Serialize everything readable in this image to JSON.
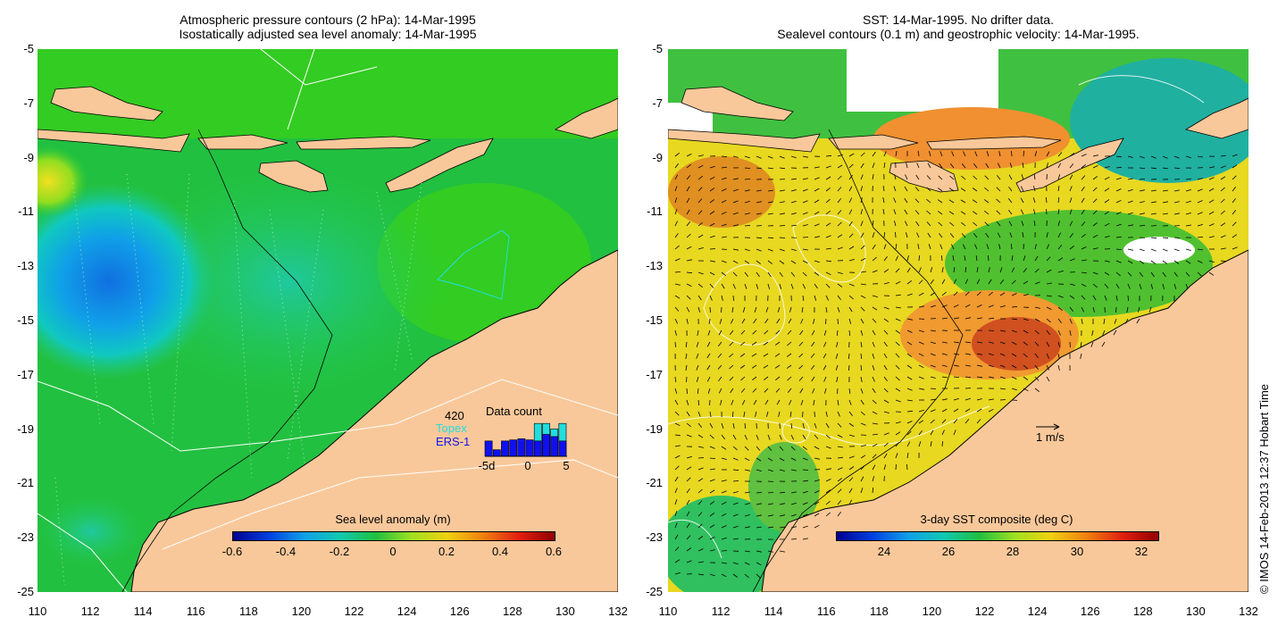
{
  "left_panel": {
    "title_line1": "Atmospheric pressure contours (2 hPa): 14-Mar-1995",
    "title_line2": "Isostatically adjusted sea level anomaly: 14-Mar-1995",
    "colorbar": {
      "label": "Sea level anomaly (m)",
      "ticks": [
        "-0.6",
        "-0.4",
        "-0.2",
        "0",
        "0.2",
        "0.4",
        "0.6"
      ],
      "range": [
        -0.6,
        0.6
      ]
    },
    "inset": {
      "title": "Data count",
      "count": "420",
      "topex_label": "Topex",
      "ers_label": "ERS-1",
      "x_ticks": [
        "-5d",
        "0",
        "5"
      ],
      "x_range": [
        -5,
        5
      ],
      "topex_bars": [
        {
          "day": -5,
          "count": 0
        },
        {
          "day": -4,
          "count": 0
        },
        {
          "day": -3,
          "count": 0
        },
        {
          "day": -2,
          "count": 0
        },
        {
          "day": -1,
          "count": 0
        },
        {
          "day": 0,
          "count": 0
        },
        {
          "day": 1,
          "count": 60
        },
        {
          "day": 2,
          "count": 60
        },
        {
          "day": 3,
          "count": 50
        },
        {
          "day": 4,
          "count": 60
        }
      ],
      "ers_bars": [
        {
          "day": -5,
          "count": 28
        },
        {
          "day": -4,
          "count": 12
        },
        {
          "day": -3,
          "count": 28
        },
        {
          "day": -2,
          "count": 30
        },
        {
          "day": -1,
          "count": 32
        },
        {
          "day": 0,
          "count": 30
        },
        {
          "day": 1,
          "count": 28
        },
        {
          "day": 2,
          "count": 40
        },
        {
          "day": 3,
          "count": 36
        },
        {
          "day": 4,
          "count": 28
        }
      ],
      "count_max": 75
    }
  },
  "right_panel": {
    "title_line1": "SST: 14-Mar-1995. No drifter data.",
    "title_line2": "Sealevel contours (0.1 m) and geostrophic velocity: 14-Mar-1995.",
    "velocity_scale_label": "1 m/s",
    "colorbar": {
      "label": "3-day SST composite (deg C)",
      "ticks": [
        "24",
        "26",
        "28",
        "30",
        "32"
      ],
      "range": [
        22.5,
        32.5
      ]
    }
  },
  "axes": {
    "lon_ticks": [
      "110",
      "112",
      "114",
      "116",
      "118",
      "120",
      "122",
      "124",
      "126",
      "128",
      "130",
      "132"
    ],
    "lat_ticks": [
      "-5",
      "-7",
      "-9",
      "-11",
      "-13",
      "-15",
      "-17",
      "-19",
      "-21",
      "-23",
      "-25"
    ],
    "lon_range": [
      110,
      132
    ],
    "lat_range": [
      -25,
      -5
    ]
  },
  "credit": "© IMOS 14-Feb-2013 12:37 Hobart Time",
  "colors": {
    "land": "#f9c89a",
    "ocean_green": "#22cc22",
    "sst_yellow": "#e8e020",
    "sst_orange": "#f09020",
    "low_cyan": "#10c0c0",
    "low_blue": "#1090e0",
    "cloud_white": "#ffffff"
  }
}
